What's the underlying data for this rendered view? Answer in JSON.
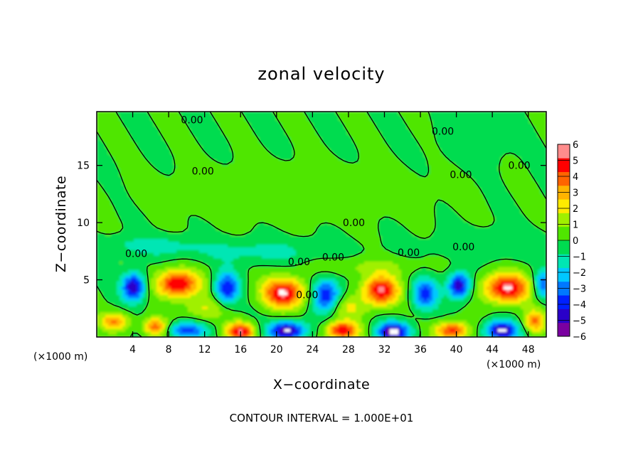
{
  "chart_data": {
    "type": "heatmap",
    "title": "zonal velocity",
    "xlabel": "X−coordinate",
    "ylabel": "Z−coordinate",
    "x_unit": "(×1000 m)",
    "y_unit": "(×1000 m)",
    "xlim": [
      0,
      50
    ],
    "ylim": [
      0,
      19.7
    ],
    "x_ticks": [
      4,
      8,
      12,
      16,
      20,
      24,
      28,
      32,
      36,
      40,
      44,
      48
    ],
    "y_ticks": [
      5,
      10,
      15
    ],
    "footer": "CONTOUR INTERVAL =  1.000E+01",
    "colorbar": {
      "levels": [
        -6,
        -5,
        -4,
        -3,
        -2,
        -1,
        0,
        1,
        2,
        3,
        4,
        5,
        6
      ],
      "tick_labels": [
        "6",
        "5",
        "4",
        "3",
        "2",
        "1",
        "0",
        "−1",
        "−2",
        "−3",
        "−4",
        "−5",
        "−6"
      ],
      "colors": [
        "#7a00a0",
        "#2a00c8",
        "#0020ff",
        "#0078ff",
        "#00c8ff",
        "#00e6b4",
        "#00dc50",
        "#50e600",
        "#a0f000",
        "#ffeb00",
        "#ffb400",
        "#ff6400",
        "#ff0000",
        "#ff8c8c"
      ]
    },
    "contour_labels": [
      {
        "text": "0.00",
        "x": 10.6,
        "z": 19.0
      },
      {
        "text": "0.00",
        "x": 11.8,
        "z": 14.5
      },
      {
        "text": "0.00",
        "x": 38.5,
        "z": 18.0
      },
      {
        "text": "0.00",
        "x": 40.5,
        "z": 14.2
      },
      {
        "text": "0.00",
        "x": 47.0,
        "z": 15.0
      },
      {
        "text": "0.00",
        "x": 28.6,
        "z": 10.0
      },
      {
        "text": "0.00",
        "x": 40.8,
        "z": 7.9
      },
      {
        "text": "0.00",
        "x": 4.4,
        "z": 7.3
      },
      {
        "text": "0.00",
        "x": 22.5,
        "z": 6.6
      },
      {
        "text": "0.00",
        "x": 26.3,
        "z": 7.0
      },
      {
        "text": "0.00",
        "x": 34.7,
        "z": 7.4
      },
      {
        "text": "0.00",
        "x": 23.4,
        "z": 3.7
      }
    ],
    "features": [
      {
        "x": 4.1,
        "z": 4.4,
        "sx": 1.3,
        "sz": 1.2,
        "v": -6.0
      },
      {
        "x": 9.0,
        "z": 4.7,
        "sx": 2.4,
        "sz": 1.2,
        "v": 6.2
      },
      {
        "x": 14.5,
        "z": 4.3,
        "sx": 1.3,
        "sz": 1.4,
        "v": -5.0
      },
      {
        "x": 20.8,
        "z": 3.9,
        "sx": 2.4,
        "sz": 1.3,
        "v": 6.3
      },
      {
        "x": 25.5,
        "z": 3.7,
        "sx": 1.5,
        "sz": 1.4,
        "v": -5.2
      },
      {
        "x": 31.6,
        "z": 4.1,
        "sx": 2.0,
        "sz": 1.3,
        "v": 6.2
      },
      {
        "x": 36.5,
        "z": 3.8,
        "sx": 1.4,
        "sz": 1.3,
        "v": -4.5
      },
      {
        "x": 40.3,
        "z": 4.5,
        "sx": 1.2,
        "sz": 1.1,
        "v": -6.0
      },
      {
        "x": 45.6,
        "z": 4.3,
        "sx": 2.6,
        "sz": 1.3,
        "v": 6.3
      },
      {
        "x": 49.6,
        "z": 4.6,
        "sx": 1.0,
        "sz": 1.2,
        "v": -4.0
      },
      {
        "x": 2.0,
        "z": 1.4,
        "sx": 1.6,
        "sz": 0.8,
        "v": 4.0
      },
      {
        "x": 6.5,
        "z": 0.9,
        "sx": 1.3,
        "sz": 0.8,
        "v": 4.5
      },
      {
        "x": 10.0,
        "z": 0.6,
        "sx": 2.0,
        "sz": 0.7,
        "v": -4.5
      },
      {
        "x": 16.0,
        "z": 0.5,
        "sx": 1.6,
        "sz": 0.8,
        "v": 6.0
      },
      {
        "x": 21.2,
        "z": 0.6,
        "sx": 2.0,
        "sz": 0.8,
        "v": -6.5
      },
      {
        "x": 27.3,
        "z": 0.6,
        "sx": 1.8,
        "sz": 0.8,
        "v": 6.0
      },
      {
        "x": 33.0,
        "z": 0.5,
        "sx": 1.8,
        "sz": 0.8,
        "v": -6.5
      },
      {
        "x": 39.5,
        "z": 0.6,
        "sx": 1.8,
        "sz": 0.8,
        "v": 5.5
      },
      {
        "x": 45.0,
        "z": 0.6,
        "sx": 1.8,
        "sz": 0.8,
        "v": -6.5
      },
      {
        "x": 48.7,
        "z": 1.4,
        "sx": 1.2,
        "sz": 1.0,
        "v": 4.0
      },
      {
        "x": 12.0,
        "z": 2.5,
        "sx": 2.5,
        "sz": 1.0,
        "v": 2.0
      },
      {
        "x": 28.0,
        "z": 2.6,
        "sx": 2.0,
        "sz": 1.0,
        "v": 2.0
      },
      {
        "x": 18.0,
        "z": 7.5,
        "sx": 8.0,
        "sz": 1.0,
        "v": -1.4
      },
      {
        "x": 6.0,
        "z": 8.0,
        "sx": 5.0,
        "sz": 0.8,
        "v": -1.6
      },
      {
        "x": 44.0,
        "z": 8.0,
        "sx": 6.0,
        "sz": 1.2,
        "v": -1.0
      },
      {
        "x": 30.0,
        "z": 6.2,
        "sx": 6.0,
        "sz": 0.8,
        "v": 1.2
      },
      {
        "x": 22.0,
        "z": 12.5,
        "sx": 12.0,
        "sz": 2.0,
        "v": 0.8
      },
      {
        "x": 42.0,
        "z": 17.5,
        "sx": 3.0,
        "sz": 2.0,
        "v": -0.6
      }
    ]
  }
}
